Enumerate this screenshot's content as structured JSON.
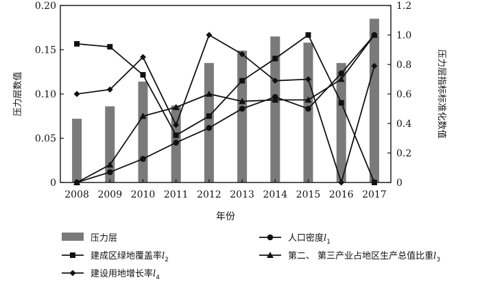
{
  "chart_data": {
    "type": "bar",
    "title": "",
    "xlabel": "年份",
    "ylabel": "压力层数值",
    "y2label": "压力层指标标准化数值",
    "ylim": [
      0,
      0.2
    ],
    "y2lim": [
      0,
      1.2
    ],
    "grid": false,
    "categories": [
      "2008",
      "2009",
      "2010",
      "2011",
      "2012",
      "2013",
      "2014",
      "2015",
      "2016",
      "2017"
    ],
    "yticks": [
      "0",
      "0.05",
      "0.10",
      "0.15",
      "0.20"
    ],
    "y2ticks": [
      "0",
      "0.2",
      "0.4",
      "0.6",
      "0.8",
      "1.0",
      "1.2"
    ],
    "series": [
      {
        "name": "压力层",
        "type": "bar",
        "axis": "left",
        "color": "#7a7a7a",
        "values": [
          0.072,
          0.086,
          0.114,
          0.087,
          0.135,
          0.149,
          0.165,
          0.158,
          0.135,
          0.185
        ]
      },
      {
        "name": "人口密度",
        "sub": "1",
        "type": "line",
        "axis": "right",
        "marker": "circle",
        "color": "#111111",
        "values": [
          0.0,
          0.07,
          0.16,
          0.27,
          0.37,
          0.5,
          0.58,
          0.5,
          0.74,
          1.0
        ]
      },
      {
        "name": "建成区绿地覆盖率",
        "sub": "2",
        "type": "line",
        "axis": "right",
        "marker": "square",
        "color": "#111111",
        "values": [
          0.94,
          0.92,
          0.73,
          0.32,
          0.45,
          0.69,
          0.84,
          1.0,
          0.54,
          0.0
        ]
      },
      {
        "name": "第二、 第三产业占地区生产总值比重",
        "sub": "3",
        "type": "line",
        "axis": "right",
        "marker": "triangle",
        "color": "#111111",
        "values": [
          0.0,
          0.12,
          0.45,
          0.51,
          0.6,
          0.55,
          0.56,
          0.56,
          0.7,
          1.0
        ]
      },
      {
        "name": "建设用地增长率",
        "sub": "4",
        "type": "line",
        "axis": "right",
        "marker": "diamond",
        "color": "#111111",
        "values": [
          0.6,
          0.63,
          0.85,
          0.39,
          1.0,
          0.87,
          0.69,
          0.7,
          0.0,
          0.79
        ]
      }
    ],
    "legend": {
      "placement": "bottom"
    }
  }
}
